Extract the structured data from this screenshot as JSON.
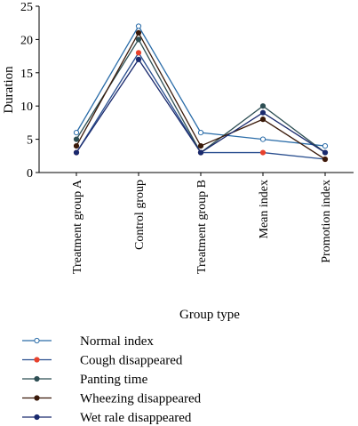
{
  "chart_data": {
    "type": "line",
    "title": "",
    "xlabel": "Group type",
    "ylabel": "Duration",
    "ylim": [
      0,
      25
    ],
    "yticks": [
      0,
      5,
      10,
      15,
      20,
      25
    ],
    "grid": false,
    "legend_position": "bottom",
    "categories": [
      "Treatment group A",
      "Control group",
      "Treatment group B",
      "Mean index",
      "Promotion index"
    ],
    "series": [
      {
        "name": "Normal index",
        "color": "#2a6ca8",
        "marker_fill": "#ffffff",
        "marker_stroke": "#2a6ca8",
        "values": [
          6,
          22,
          6,
          5,
          4
        ]
      },
      {
        "name": "Cough disappeared",
        "color": "#2a4f8f",
        "marker_fill": "#e8412c",
        "marker_stroke": "#e8412c",
        "values": [
          3,
          18,
          3,
          3,
          2
        ]
      },
      {
        "name": "Panting time",
        "color": "#2e4f54",
        "marker_fill": "#2e4f54",
        "marker_stroke": "#2e4f54",
        "values": [
          5,
          20,
          3,
          10,
          3
        ]
      },
      {
        "name": "Wheezing disappeared",
        "color": "#3a1a0a",
        "marker_fill": "#3a1a0a",
        "marker_stroke": "#3a1a0a",
        "values": [
          4,
          21,
          4,
          8,
          2
        ]
      },
      {
        "name": "Wet rale disappeared",
        "color": "#1a2a6e",
        "marker_fill": "#1a2a6e",
        "marker_stroke": "#1a2a6e",
        "values": [
          3,
          17,
          3,
          9,
          3
        ]
      }
    ]
  }
}
